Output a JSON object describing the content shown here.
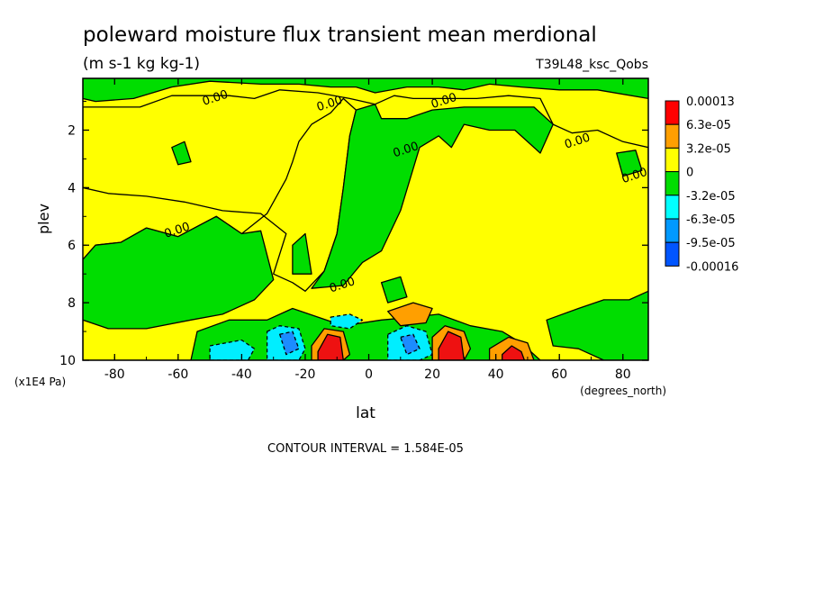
{
  "chart_data": {
    "type": "heatmap",
    "title": "poleward moisture flux transient mean merdional",
    "units": "(m s-1 kg kg-1)",
    "dataset": "T39L48_ksc_Qobs",
    "xlabel": "lat",
    "xunits": "(degrees_north)",
    "ylabel": "plev",
    "yunits": "(x1E4 Pa)",
    "xlim": [
      -90,
      88
    ],
    "ylim": [
      10,
      0.2
    ],
    "xticks": [
      -80,
      -60,
      -40,
      -20,
      0,
      20,
      40,
      60,
      80
    ],
    "yticks": [
      2,
      4,
      6,
      8,
      10
    ],
    "contour_interval_text": "CONTOUR INTERVAL = 1.584E-05",
    "contour_label": "0.00",
    "legend": {
      "placement": "right",
      "labels": [
        "0.00013",
        "6.3e-05",
        "3.2e-05",
        "0",
        "-3.2e-05",
        "-6.3e-05",
        "-9.5e-05",
        "-0.00016"
      ],
      "colors": [
        "#ff0000",
        "#ff9f00",
        "#ffff00",
        "#00dd00",
        "#00ffff",
        "#0099ff",
        "#0055ff"
      ]
    },
    "colors": {
      "positive": "#ffff00",
      "negative": "#00dd00",
      "strong_pos": "#ee1111",
      "mid_pos": "#ff9f00",
      "mid_neg": "#00eeff",
      "strong_neg": "#1c8cff"
    },
    "regions": [
      {
        "kind": "green",
        "pts": [
          [
            -90,
            0.2
          ],
          [
            88,
            0.2
          ],
          [
            88,
            0.9
          ],
          [
            72,
            0.6
          ],
          [
            60,
            0.6
          ],
          [
            48,
            0.5
          ],
          [
            38,
            0.4
          ],
          [
            30,
            0.6
          ],
          [
            22,
            0.5
          ],
          [
            12,
            0.5
          ],
          [
            2,
            0.7
          ],
          [
            -4,
            0.5
          ],
          [
            -12,
            0.5
          ],
          [
            -22,
            0.4
          ],
          [
            -34,
            0.4
          ],
          [
            -50,
            0.3
          ],
          [
            -62,
            0.5
          ],
          [
            -74,
            0.9
          ],
          [
            -86,
            1.0
          ],
          [
            -90,
            0.9
          ]
        ]
      },
      {
        "kind": "yellow",
        "pts": [
          [
            -90,
            1.2
          ],
          [
            -72,
            1.2
          ],
          [
            -62,
            0.8
          ],
          [
            -52,
            0.8
          ],
          [
            -44,
            0.8
          ],
          [
            -36,
            0.9
          ],
          [
            -28,
            0.6
          ],
          [
            -16,
            0.7
          ],
          [
            -6,
            0.9
          ],
          [
            2,
            1.1
          ],
          [
            8,
            0.8
          ],
          [
            14,
            0.9
          ],
          [
            24,
            0.9
          ],
          [
            34,
            0.9
          ],
          [
            44,
            0.8
          ],
          [
            54,
            0.9
          ],
          [
            58,
            1.8
          ],
          [
            64,
            2.1
          ],
          [
            72,
            2.0
          ],
          [
            80,
            2.4
          ],
          [
            88,
            2.6
          ],
          [
            88,
            10
          ],
          [
            -90,
            10
          ],
          [
            -90,
            6.5
          ],
          [
            -86,
            6.0
          ],
          [
            -78,
            5.9
          ],
          [
            -70,
            5.4
          ],
          [
            -60,
            5.7
          ],
          [
            -48,
            5.0
          ],
          [
            -40,
            5.6
          ],
          [
            -32,
            4.9
          ],
          [
            -26,
            3.7
          ],
          [
            -24,
            3.1
          ],
          [
            -22,
            2.4
          ],
          [
            -18,
            1.8
          ],
          [
            -12,
            1.4
          ],
          [
            -8,
            0.9
          ],
          [
            -4,
            1.3
          ],
          [
            -6,
            2.2
          ],
          [
            -8,
            4.0
          ],
          [
            -10,
            5.6
          ],
          [
            -14,
            6.9
          ],
          [
            -20,
            7.6
          ],
          [
            -24,
            7.3
          ],
          [
            -30,
            7.0
          ],
          [
            -26,
            5.6
          ],
          [
            -34,
            4.9
          ],
          [
            -46,
            4.8
          ],
          [
            -58,
            4.5
          ],
          [
            -70,
            4.3
          ],
          [
            -82,
            4.2
          ],
          [
            -90,
            4.0
          ]
        ]
      },
      {
        "kind": "green",
        "pts": [
          [
            -90,
            6.5
          ],
          [
            -86,
            6.0
          ],
          [
            -78,
            5.9
          ],
          [
            -70,
            5.4
          ],
          [
            -60,
            5.7
          ],
          [
            -48,
            5.0
          ],
          [
            -40,
            5.6
          ],
          [
            -34,
            5.5
          ],
          [
            -30,
            7.2
          ],
          [
            -36,
            7.9
          ],
          [
            -46,
            8.4
          ],
          [
            -56,
            8.6
          ],
          [
            -70,
            8.9
          ],
          [
            -82,
            8.9
          ],
          [
            -90,
            8.6
          ]
        ]
      },
      {
        "kind": "green",
        "pts": [
          [
            -4,
            1.3
          ],
          [
            -6,
            2.2
          ],
          [
            -8,
            4.0
          ],
          [
            -10,
            5.6
          ],
          [
            -14,
            6.9
          ],
          [
            -18,
            7.5
          ],
          [
            -8,
            7.4
          ],
          [
            -2,
            6.6
          ],
          [
            4,
            6.2
          ],
          [
            10,
            4.8
          ],
          [
            16,
            2.6
          ],
          [
            22,
            2.2
          ],
          [
            26,
            2.6
          ],
          [
            30,
            1.8
          ],
          [
            38,
            2.0
          ],
          [
            46,
            2.0
          ],
          [
            54,
            2.8
          ],
          [
            58,
            1.8
          ],
          [
            52,
            1.2
          ],
          [
            42,
            1.2
          ],
          [
            30,
            1.2
          ],
          [
            20,
            1.3
          ],
          [
            12,
            1.6
          ],
          [
            4,
            1.6
          ],
          [
            2,
            1.1
          ]
        ]
      },
      {
        "kind": "green",
        "pts": [
          [
            56,
            8.6
          ],
          [
            66,
            8.2
          ],
          [
            74,
            7.9
          ],
          [
            82,
            7.9
          ],
          [
            88,
            7.6
          ],
          [
            88,
            10
          ],
          [
            74,
            10
          ],
          [
            66,
            9.6
          ],
          [
            58,
            9.5
          ]
        ]
      },
      {
        "kind": "green",
        "pts": [
          [
            -54,
            9.0
          ],
          [
            -44,
            8.6
          ],
          [
            -32,
            8.6
          ],
          [
            -24,
            8.2
          ],
          [
            -16,
            8.5
          ],
          [
            -8,
            8.8
          ],
          [
            4,
            8.6
          ],
          [
            14,
            8.5
          ],
          [
            22,
            8.4
          ],
          [
            32,
            8.8
          ],
          [
            42,
            9.0
          ],
          [
            48,
            9.4
          ],
          [
            54,
            10
          ],
          [
            -56,
            10
          ]
        ]
      },
      {
        "kind": "green",
        "pts": [
          [
            -62,
            2.6
          ],
          [
            -58,
            2.4
          ],
          [
            -56,
            3.1
          ],
          [
            -60,
            3.2
          ]
        ]
      },
      {
        "kind": "green",
        "pts": [
          [
            4,
            7.3
          ],
          [
            10,
            7.1
          ],
          [
            12,
            7.8
          ],
          [
            6,
            8.0
          ]
        ]
      },
      {
        "kind": "green",
        "pts": [
          [
            -24,
            6.0
          ],
          [
            -20,
            5.6
          ],
          [
            -18,
            7.0
          ],
          [
            -24,
            7.0
          ]
        ]
      },
      {
        "kind": "green",
        "pts": [
          [
            78,
            2.8
          ],
          [
            84,
            2.7
          ],
          [
            86,
            3.4
          ],
          [
            80,
            3.6
          ]
        ]
      },
      {
        "kind": "cyan",
        "pts": [
          [
            -32,
            9.0
          ],
          [
            -28,
            8.8
          ],
          [
            -22,
            8.9
          ],
          [
            -20,
            9.6
          ],
          [
            -22,
            10
          ],
          [
            -32,
            10
          ]
        ]
      },
      {
        "kind": "cyan",
        "pts": [
          [
            -12,
            8.5
          ],
          [
            -6,
            8.4
          ],
          [
            -2,
            8.6
          ],
          [
            -6,
            8.9
          ],
          [
            -12,
            8.8
          ]
        ]
      },
      {
        "kind": "cyan",
        "pts": [
          [
            -50,
            9.5
          ],
          [
            -40,
            9.3
          ],
          [
            -36,
            9.6
          ],
          [
            -38,
            10
          ],
          [
            -50,
            10
          ]
        ]
      },
      {
        "kind": "cyan",
        "pts": [
          [
            6,
            9.1
          ],
          [
            12,
            8.8
          ],
          [
            18,
            9.0
          ],
          [
            20,
            9.8
          ],
          [
            16,
            10
          ],
          [
            6,
            10
          ]
        ]
      },
      {
        "kind": "blue",
        "pts": [
          [
            -28,
            9.1
          ],
          [
            -24,
            9.0
          ],
          [
            -22,
            9.6
          ],
          [
            -26,
            9.8
          ]
        ]
      },
      {
        "kind": "blue",
        "pts": [
          [
            10,
            9.2
          ],
          [
            14,
            9.1
          ],
          [
            16,
            9.6
          ],
          [
            12,
            9.8
          ]
        ]
      },
      {
        "kind": "orange",
        "pts": [
          [
            -18,
            9.5
          ],
          [
            -14,
            8.9
          ],
          [
            -8,
            9.0
          ],
          [
            -6,
            9.8
          ],
          [
            -8,
            10
          ],
          [
            -18,
            10
          ]
        ]
      },
      {
        "kind": "orange",
        "pts": [
          [
            20,
            9.2
          ],
          [
            24,
            8.8
          ],
          [
            30,
            9.0
          ],
          [
            32,
            9.6
          ],
          [
            30,
            10
          ],
          [
            20,
            10
          ]
        ]
      },
      {
        "kind": "orange",
        "pts": [
          [
            38,
            9.6
          ],
          [
            44,
            9.2
          ],
          [
            50,
            9.4
          ],
          [
            52,
            10
          ],
          [
            38,
            10
          ]
        ]
      },
      {
        "kind": "orange",
        "pts": [
          [
            6,
            8.3
          ],
          [
            14,
            8.0
          ],
          [
            20,
            8.2
          ],
          [
            18,
            8.7
          ],
          [
            10,
            8.8
          ]
        ]
      },
      {
        "kind": "red",
        "pts": [
          [
            -16,
            9.7
          ],
          [
            -13,
            9.1
          ],
          [
            -9,
            9.2
          ],
          [
            -8,
            10
          ],
          [
            -16,
            10
          ]
        ]
      },
      {
        "kind": "red",
        "pts": [
          [
            22,
            9.6
          ],
          [
            25,
            9.0
          ],
          [
            29,
            9.2
          ],
          [
            30,
            10
          ],
          [
            22,
            10
          ]
        ]
      },
      {
        "kind": "red",
        "pts": [
          [
            42,
            9.8
          ],
          [
            45,
            9.5
          ],
          [
            48,
            9.7
          ],
          [
            49,
            10
          ],
          [
            42,
            10
          ]
        ]
      }
    ],
    "label_positions": [
      [
        -48,
        1.0
      ],
      [
        -12,
        1.2
      ],
      [
        24,
        1.1
      ],
      [
        66,
        2.5
      ],
      [
        12,
        2.8
      ],
      [
        84,
        3.7
      ],
      [
        -60,
        5.6
      ],
      [
        -8,
        7.5
      ]
    ]
  }
}
